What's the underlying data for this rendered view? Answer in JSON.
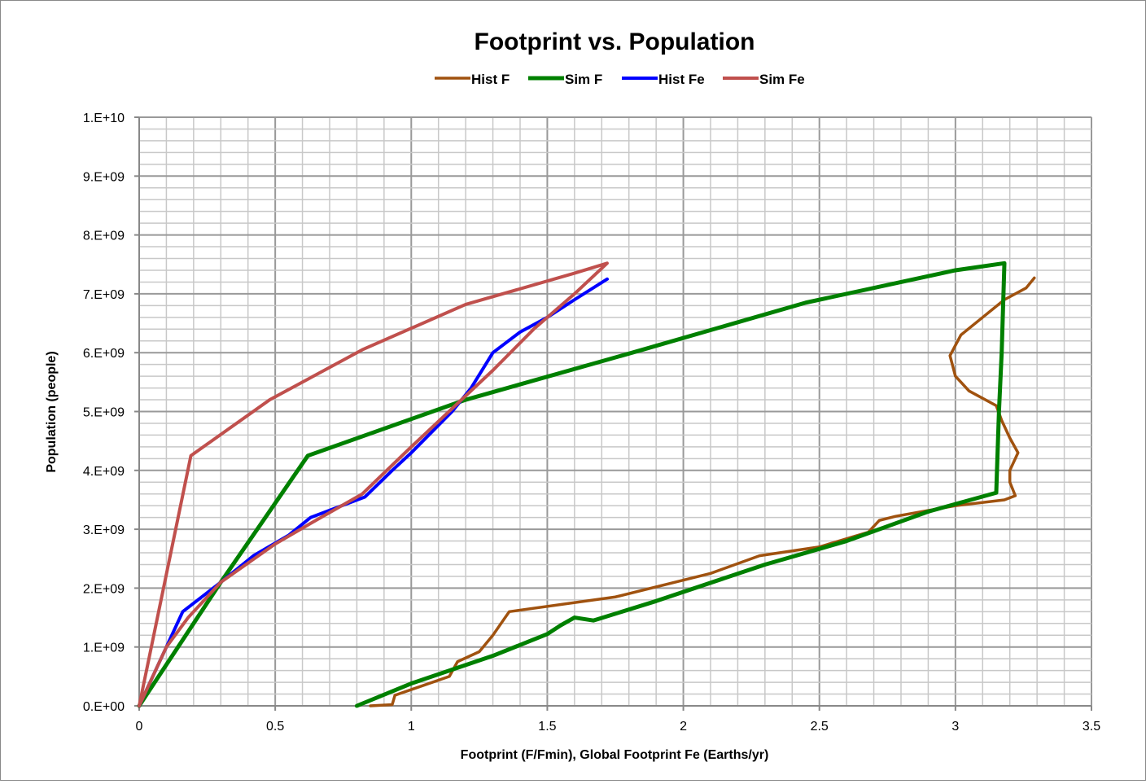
{
  "chart_data": {
    "type": "line",
    "title": "Footprint vs. Population",
    "xlabel": "Footprint (F/Fmin), Global Footprint Fe (Earths/yr)",
    "ylabel": "Population (people)",
    "xlim": [
      0,
      3.5
    ],
    "ylim": [
      0,
      10000000000
    ],
    "xticks": [
      0,
      0.5,
      1,
      1.5,
      2,
      2.5,
      3,
      3.5
    ],
    "xtick_labels": [
      "0",
      "0.5",
      "1",
      "1.5",
      "2",
      "2.5",
      "3",
      "3.5"
    ],
    "yticks": [
      0,
      1000000000.0,
      2000000000.0,
      3000000000.0,
      4000000000.0,
      5000000000.0,
      6000000000.0,
      7000000000.0,
      8000000000.0,
      9000000000.0,
      10000000000.0
    ],
    "ytick_labels": [
      "0.E+00",
      "1.E+09",
      "2.E+09",
      "3.E+09",
      "4.E+09",
      "5.E+09",
      "6.E+09",
      "7.E+09",
      "8.E+09",
      "9.E+09",
      "1.E+10"
    ],
    "grid": true,
    "minor_grid": true,
    "legend": "top-center",
    "series": [
      {
        "name": "Hist F",
        "color": "#a0520f",
        "points": [
          [
            0.85,
            0
          ],
          [
            0.93,
            20000000.0
          ],
          [
            0.94,
            180000000.0
          ],
          [
            1.14,
            500000000.0
          ],
          [
            1.17,
            750000000.0
          ],
          [
            1.25,
            920000000.0
          ],
          [
            1.3,
            1200000000.0
          ],
          [
            1.36,
            1600000000.0
          ],
          [
            1.75,
            1850000000.0
          ],
          [
            2.1,
            2250000000.0
          ],
          [
            2.28,
            2550000000.0
          ],
          [
            2.5,
            2700000000.0
          ],
          [
            2.68,
            2950000000.0
          ],
          [
            2.72,
            3150000000.0
          ],
          [
            2.78,
            3220000000.0
          ],
          [
            3.0,
            3400000000.0
          ],
          [
            3.18,
            3500000000.0
          ],
          [
            3.22,
            3570000000.0
          ],
          [
            3.2,
            3800000000.0
          ],
          [
            3.2,
            4000000000.0
          ],
          [
            3.23,
            4300000000.0
          ],
          [
            3.2,
            4550000000.0
          ],
          [
            3.17,
            4850000000.0
          ],
          [
            3.15,
            5100000000.0
          ],
          [
            3.05,
            5350000000.0
          ],
          [
            3.0,
            5600000000.0
          ],
          [
            2.98,
            5950000000.0
          ],
          [
            3.02,
            6300000000.0
          ],
          [
            3.1,
            6600000000.0
          ],
          [
            3.18,
            6900000000.0
          ],
          [
            3.26,
            7100000000.0
          ],
          [
            3.29,
            7270000000.0
          ]
        ]
      },
      {
        "name": "Sim F",
        "color": "#008000",
        "points": [
          [
            0,
            0
          ],
          [
            0.3,
            2100000000.0
          ],
          [
            0.62,
            4250000000.0
          ],
          [
            1.2,
            5200000000.0
          ],
          [
            1.85,
            6050000000.0
          ],
          [
            2.45,
            6850000000.0
          ],
          [
            3.0,
            7400000000.0
          ],
          [
            3.18,
            7520000000.0
          ],
          [
            3.17,
            6000000000.0
          ],
          [
            3.16,
            5000000000.0
          ],
          [
            3.15,
            3620000000.0
          ],
          [
            2.9,
            3300000000.0
          ],
          [
            2.6,
            2800000000.0
          ],
          [
            2.3,
            2400000000.0
          ],
          [
            1.9,
            1780000000.0
          ],
          [
            1.67,
            1450000000.0
          ],
          [
            1.6,
            1500000000.0
          ],
          [
            1.55,
            1370000000.0
          ],
          [
            1.5,
            1220000000.0
          ],
          [
            1.3,
            850000000.0
          ],
          [
            1.0,
            380000000.0
          ],
          [
            0.8,
            0
          ]
        ]
      },
      {
        "name": "Hist Fe",
        "color": "#0000ff",
        "points": [
          [
            0,
            0
          ],
          [
            0.16,
            1600000000.0
          ],
          [
            0.3,
            2100000000.0
          ],
          [
            0.42,
            2550000000.0
          ],
          [
            0.55,
            2900000000.0
          ],
          [
            0.63,
            3200000000.0
          ],
          [
            0.83,
            3550000000.0
          ],
          [
            0.93,
            4000000000.0
          ],
          [
            1.0,
            4300000000.0
          ],
          [
            1.15,
            5000000000.0
          ],
          [
            1.22,
            5400000000.0
          ],
          [
            1.3,
            6000000000.0
          ],
          [
            1.4,
            6350000000.0
          ],
          [
            1.5,
            6600000000.0
          ],
          [
            1.6,
            6900000000.0
          ],
          [
            1.72,
            7250000000.0
          ]
        ]
      },
      {
        "name": "Sim Fe",
        "color": "#c0504d",
        "points": [
          [
            0,
            0
          ],
          [
            0.19,
            4250000000.0
          ],
          [
            0.48,
            5200000000.0
          ],
          [
            0.82,
            6050000000.0
          ],
          [
            1.2,
            6820000000.0
          ],
          [
            1.6,
            7350000000.0
          ],
          [
            1.72,
            7520000000.0
          ],
          [
            1.6,
            7000000000.0
          ],
          [
            1.45,
            6400000000.0
          ],
          [
            1.3,
            5700000000.0
          ],
          [
            1.15,
            5050000000.0
          ],
          [
            1.0,
            4400000000.0
          ],
          [
            0.82,
            3600000000.0
          ],
          [
            0.63,
            3100000000.0
          ],
          [
            0.5,
            2750000000.0
          ],
          [
            0.3,
            2100000000.0
          ],
          [
            0.18,
            1500000000.0
          ],
          [
            0.1,
            1000000000.0
          ],
          [
            0,
            0
          ]
        ]
      }
    ]
  }
}
